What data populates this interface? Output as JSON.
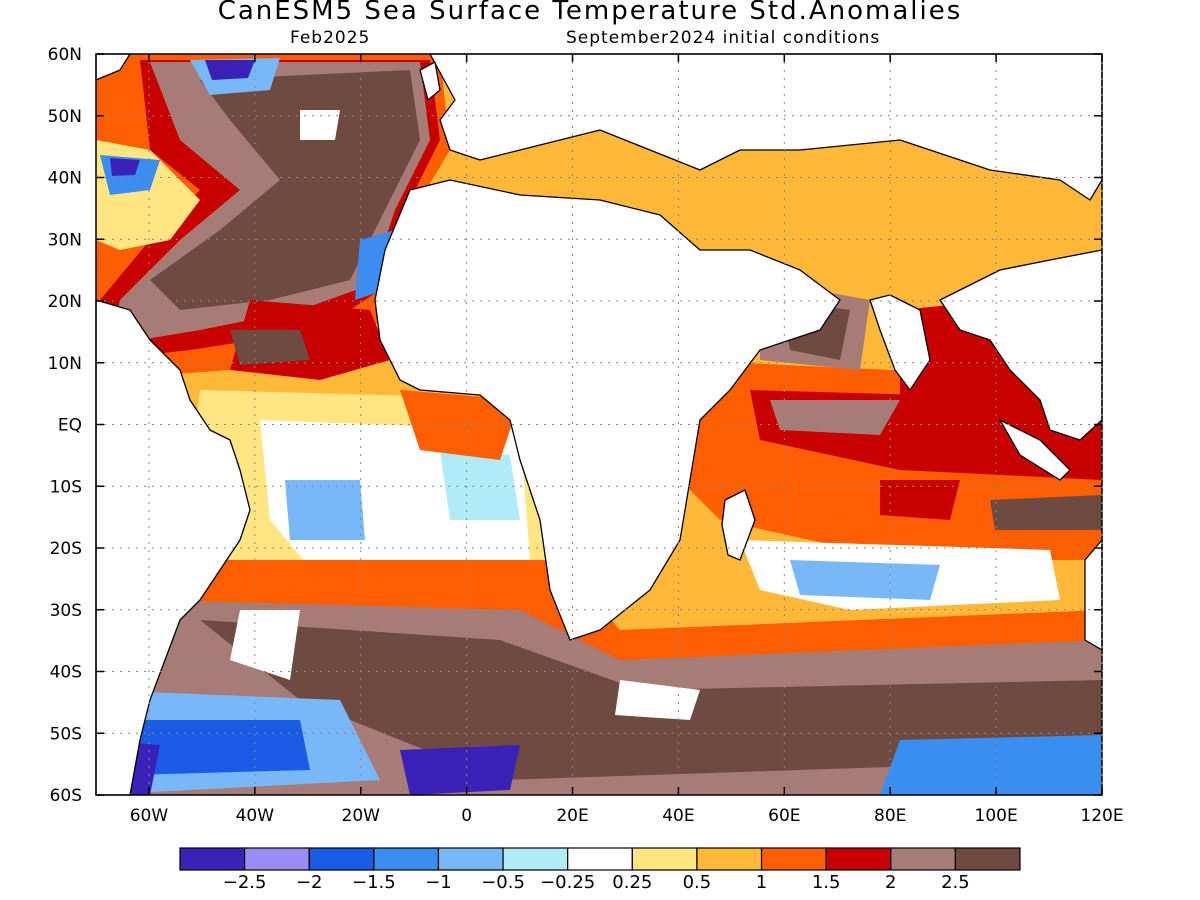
{
  "title": "CanESM5 Sea Surface Temperature Std.Anomalies",
  "subtitle_left": "Feb2025",
  "subtitle_right": "September2024 initial conditions",
  "map": {
    "lon_range": [
      -70,
      120
    ],
    "lat_range": [
      -60,
      60
    ],
    "gridlines": "dotted",
    "lat_ticks": [
      "60N",
      "50N",
      "40N",
      "30N",
      "20N",
      "10N",
      "EQ",
      "10S",
      "20S",
      "30S",
      "40S",
      "50S",
      "60S"
    ],
    "lon_ticks": [
      "60W",
      "40W",
      "20W",
      "0",
      "20E",
      "40E",
      "60E",
      "80E",
      "100E",
      "120E"
    ]
  },
  "colorbar": {
    "colors": [
      "#3a22b8",
      "#9a8cf2",
      "#1a5ce6",
      "#3a8ef2",
      "#78b8f8",
      "#b0ecf8",
      "#ffffff",
      "#ffe682",
      "#ffb838",
      "#ff5e00",
      "#c80000",
      "#a87c76",
      "#6e4a40"
    ],
    "labels": [
      "−2.5",
      "−2",
      "−1.5",
      "−1",
      "−0.5",
      "−0.25",
      "0.25",
      "0.5",
      "1",
      "1.5",
      "2",
      "2.5"
    ]
  }
}
